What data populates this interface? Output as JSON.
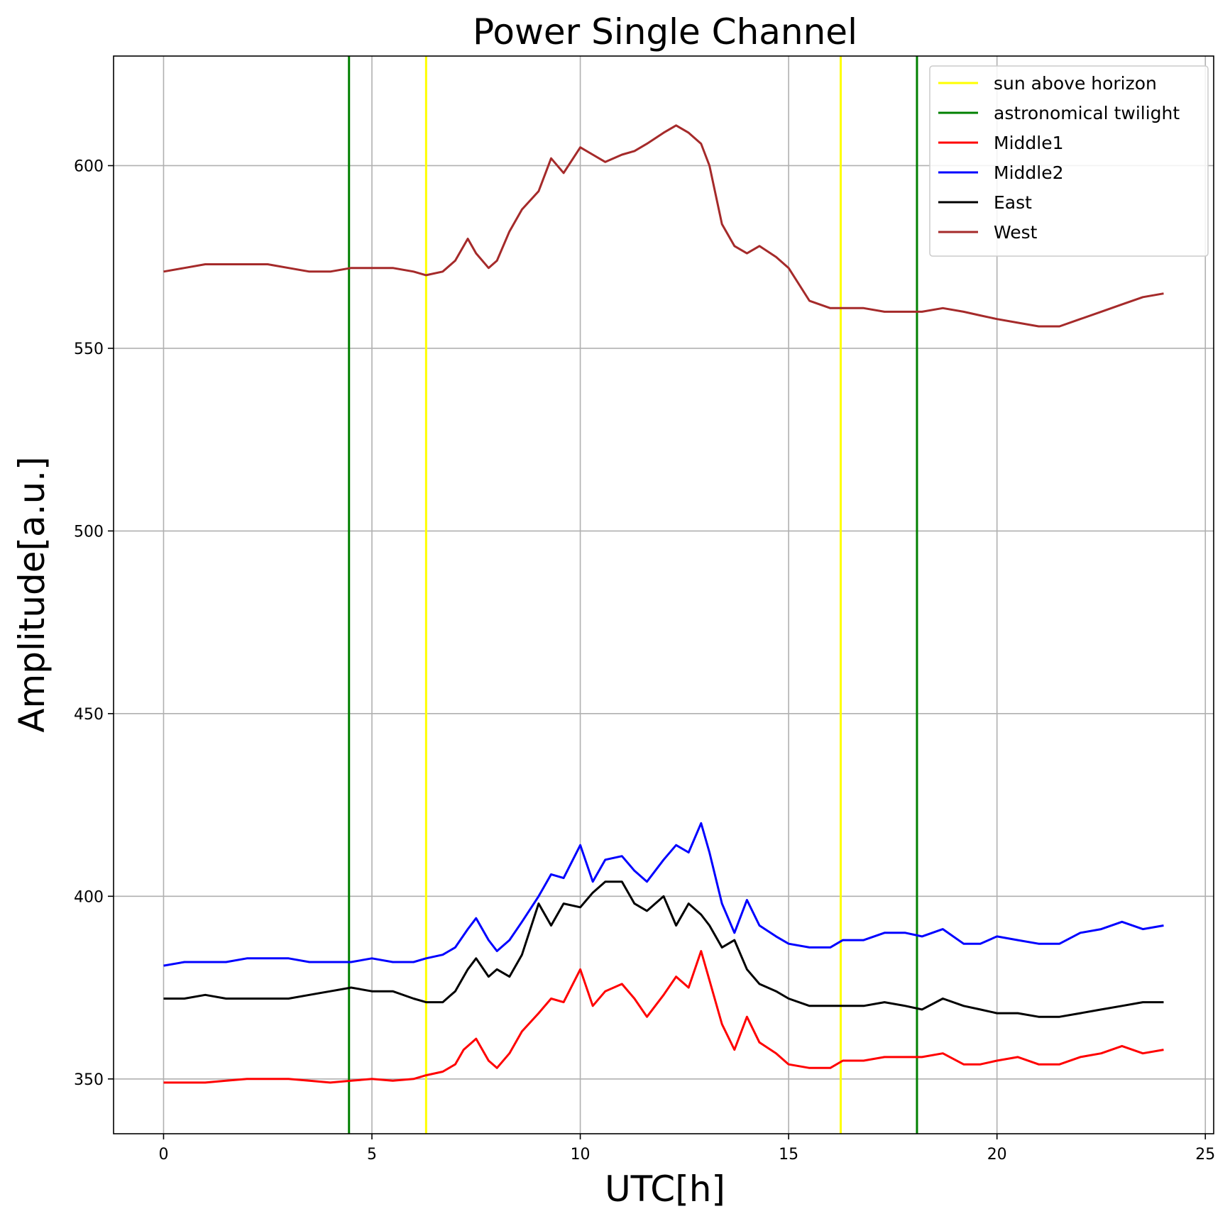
{
  "chart_data": {
    "type": "line",
    "title": "Power Single Channel",
    "xlabel": "UTC[h]",
    "ylabel": "Amplitude[a.u.]",
    "xlim": [
      -1.2,
      25.2
    ],
    "ylim": [
      335,
      630
    ],
    "xticks": [
      0,
      5,
      10,
      15,
      20,
      25
    ],
    "yticks": [
      350,
      400,
      450,
      500,
      550,
      600
    ],
    "grid": true,
    "legend_position": "top-right",
    "vlines": [
      {
        "name": "sun above horizon",
        "color": "#ffff00",
        "x": [
          6.3,
          16.25
        ]
      },
      {
        "name": "astronomical twilight",
        "color": "#008000",
        "x": [
          4.45,
          18.08
        ]
      }
    ],
    "series": [
      {
        "name": "Middle1",
        "color": "#ff0000",
        "x": [
          0,
          0.5,
          1,
          1.5,
          2,
          2.5,
          3,
          3.5,
          4,
          4.5,
          5,
          5.5,
          6,
          6.3,
          6.7,
          7,
          7.2,
          7.5,
          7.8,
          8,
          8.3,
          8.6,
          9,
          9.3,
          9.6,
          10,
          10.3,
          10.6,
          11,
          11.3,
          11.6,
          12,
          12.3,
          12.6,
          12.9,
          13.1,
          13.4,
          13.7,
          14,
          14.3,
          14.7,
          15,
          15.5,
          16,
          16.3,
          16.8,
          17.3,
          17.8,
          18.2,
          18.7,
          19.2,
          19.6,
          20,
          20.5,
          21,
          21.5,
          22,
          22.5,
          23,
          23.5,
          24
        ],
        "y": [
          349,
          349,
          349,
          349.5,
          350,
          350,
          350,
          349.5,
          349,
          349.5,
          350,
          349.5,
          350,
          351,
          352,
          354,
          358,
          361,
          355,
          353,
          357,
          363,
          368,
          372,
          371,
          380,
          370,
          374,
          376,
          372,
          367,
          373,
          378,
          375,
          385,
          377,
          365,
          358,
          367,
          360,
          357,
          354,
          353,
          353,
          355,
          355,
          356,
          356,
          356,
          357,
          354,
          354,
          355,
          356,
          354,
          354,
          356,
          357,
          359,
          357,
          358
        ]
      },
      {
        "name": "Middle2",
        "color": "#0000ff",
        "x": [
          0,
          0.5,
          1,
          1.5,
          2,
          2.5,
          3,
          3.5,
          4,
          4.5,
          5,
          5.5,
          6,
          6.3,
          6.7,
          7,
          7.3,
          7.5,
          7.8,
          8,
          8.3,
          8.6,
          9,
          9.3,
          9.6,
          10,
          10.3,
          10.6,
          11,
          11.3,
          11.6,
          12,
          12.3,
          12.6,
          12.9,
          13.1,
          13.4,
          13.7,
          14,
          14.3,
          14.7,
          15,
          15.5,
          16,
          16.3,
          16.8,
          17.3,
          17.8,
          18.2,
          18.7,
          19.2,
          19.6,
          20,
          20.5,
          21,
          21.5,
          22,
          22.5,
          23,
          23.5,
          24
        ],
        "y": [
          381,
          382,
          382,
          382,
          383,
          383,
          383,
          382,
          382,
          382,
          383,
          382,
          382,
          383,
          384,
          386,
          391,
          394,
          388,
          385,
          388,
          393,
          400,
          406,
          405,
          414,
          404,
          410,
          411,
          407,
          404,
          410,
          414,
          412,
          420,
          412,
          398,
          390,
          399,
          392,
          389,
          387,
          386,
          386,
          388,
          388,
          390,
          390,
          389,
          391,
          387,
          387,
          389,
          388,
          387,
          387,
          390,
          391,
          393,
          391,
          392
        ]
      },
      {
        "name": "East",
        "color": "#000000",
        "x": [
          0,
          0.5,
          1,
          1.5,
          2,
          2.5,
          3,
          3.5,
          4,
          4.5,
          5,
          5.5,
          6,
          6.3,
          6.7,
          7,
          7.3,
          7.5,
          7.8,
          8,
          8.3,
          8.6,
          9,
          9.3,
          9.6,
          10,
          10.3,
          10.6,
          11,
          11.3,
          11.6,
          12,
          12.3,
          12.6,
          12.9,
          13.1,
          13.4,
          13.7,
          14,
          14.3,
          14.7,
          15,
          15.5,
          16,
          16.3,
          16.8,
          17.3,
          17.8,
          18.2,
          18.7,
          19.2,
          19.6,
          20,
          20.5,
          21,
          21.5,
          22,
          22.5,
          23,
          23.5,
          24
        ],
        "y": [
          372,
          372,
          373,
          372,
          372,
          372,
          372,
          373,
          374,
          375,
          374,
          374,
          372,
          371,
          371,
          374,
          380,
          383,
          378,
          380,
          378,
          384,
          398,
          392,
          398,
          397,
          401,
          404,
          404,
          398,
          396,
          400,
          392,
          398,
          395,
          392,
          386,
          388,
          380,
          376,
          374,
          372,
          370,
          370,
          370,
          370,
          371,
          370,
          369,
          372,
          370,
          369,
          368,
          368,
          367,
          367,
          368,
          369,
          370,
          371,
          371
        ]
      },
      {
        "name": "West",
        "color": "#a52a2a",
        "x": [
          0,
          0.5,
          1,
          1.5,
          2,
          2.5,
          3,
          3.5,
          4,
          4.5,
          5,
          5.5,
          6,
          6.3,
          6.7,
          7,
          7.3,
          7.5,
          7.8,
          8,
          8.3,
          8.6,
          9,
          9.3,
          9.6,
          10,
          10.3,
          10.6,
          11,
          11.3,
          11.6,
          12,
          12.3,
          12.6,
          12.9,
          13.1,
          13.4,
          13.7,
          14,
          14.3,
          14.7,
          15,
          15.5,
          16,
          16.3,
          16.8,
          17.3,
          17.8,
          18.2,
          18.7,
          19.2,
          19.6,
          20,
          20.5,
          21,
          21.5,
          22,
          22.5,
          23,
          23.5,
          24
        ],
        "y": [
          571,
          572,
          573,
          573,
          573,
          573,
          572,
          571,
          571,
          572,
          572,
          572,
          571,
          570,
          571,
          574,
          580,
          576,
          572,
          574,
          582,
          588,
          593,
          602,
          598,
          605,
          603,
          601,
          603,
          604,
          606,
          609,
          611,
          609,
          606,
          600,
          584,
          578,
          576,
          578,
          575,
          572,
          563,
          561,
          561,
          561,
          560,
          560,
          560,
          561,
          560,
          559,
          558,
          557,
          556,
          556,
          558,
          560,
          562,
          564,
          565
        ]
      }
    ]
  }
}
